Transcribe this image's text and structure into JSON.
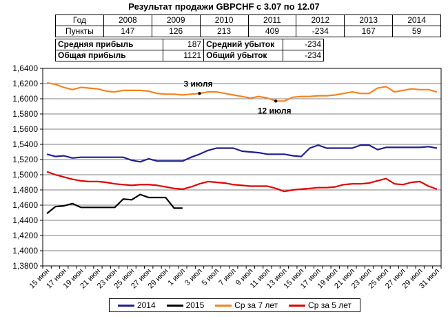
{
  "title": "Результат продажи GBPCHF с 3.07 по 12.07",
  "years_table": {
    "header_label": "Год",
    "values_label": "Пункты",
    "years": [
      "2008",
      "2009",
      "2010",
      "2011",
      "2012",
      "2013",
      "2014"
    ],
    "points": [
      "147",
      "126",
      "213",
      "409",
      "-234",
      "167",
      "59"
    ]
  },
  "summary": {
    "avg_profit_label": "Средняя прибыль",
    "avg_profit": "187",
    "avg_loss_label": "Средний убыток",
    "avg_loss": "-234",
    "total_profit_label": "Общая прибыль",
    "total_profit": "1121",
    "total_loss_label": "Общий убыток",
    "total_loss": "-234"
  },
  "chart_data": {
    "type": "line",
    "x": [
      "15 июн",
      "16 июн",
      "17 июн",
      "18 июн",
      "19 июн",
      "20 июн",
      "21 июн",
      "22 июн",
      "23 июн",
      "24 июн",
      "25 июн",
      "26 июн",
      "27 июн",
      "28 июн",
      "29 июн",
      "30 июн",
      "1 июл",
      "2 июл",
      "3 июл",
      "4 июл",
      "5 июл",
      "6 июл",
      "7 июл",
      "8 июл",
      "9 июл",
      "10 июл",
      "11 июл",
      "12 июл",
      "13 июл",
      "14 июл",
      "15 июл",
      "16 июл",
      "17 июл",
      "18 июл",
      "19 июл",
      "20 июл",
      "21 июл",
      "22 июл",
      "23 июл",
      "24 июл",
      "25 июл",
      "26 июл",
      "27 июл",
      "28 июл",
      "29 июл",
      "30 июл",
      "31 июл"
    ],
    "x_tick_labels": [
      "15 июн",
      "17 июн",
      "19 июн",
      "21 июн",
      "23 июн",
      "25 июн",
      "27 июн",
      "29 июн",
      "1 июл",
      "3 июл",
      "5 июл",
      "7 июл",
      "9 июл",
      "11 июл",
      "13 июл",
      "15 июл",
      "17 июл",
      "19 июл",
      "21 июл",
      "23 июл",
      "25 июл",
      "27 июл",
      "29 июл",
      "31 июл"
    ],
    "ylim": [
      1.38,
      1.64
    ],
    "y_ticks": [
      1.38,
      1.4,
      1.42,
      1.44,
      1.46,
      1.48,
      1.5,
      1.52,
      1.54,
      1.56,
      1.58,
      1.6,
      1.62,
      1.64
    ],
    "y_tick_labels": [
      "1,3800",
      "1,4000",
      "1,4200",
      "1,4400",
      "1,4600",
      "1,4800",
      "1,5000",
      "1,5200",
      "1,5400",
      "1,5600",
      "1,5800",
      "1,6000",
      "1,6200",
      "1,6400"
    ],
    "grid": true,
    "legend_position": "bottom",
    "series": [
      {
        "name": "2014",
        "color": "#1f1f8f",
        "values": [
          1.527,
          1.524,
          1.525,
          1.522,
          1.523,
          1.523,
          1.523,
          1.523,
          1.523,
          1.523,
          1.519,
          1.517,
          1.521,
          1.518,
          1.518,
          1.518,
          1.518,
          1.523,
          1.527,
          1.532,
          1.535,
          1.535,
          1.535,
          1.531,
          1.53,
          1.529,
          1.527,
          1.527,
          1.527,
          1.525,
          1.524,
          1.535,
          1.539,
          1.535,
          1.535,
          1.535,
          1.535,
          1.539,
          1.539,
          1.533,
          1.536,
          1.536,
          1.536,
          1.536,
          1.536,
          1.537,
          1.535
        ]
      },
      {
        "name": "2015",
        "color": "#000000",
        "values": [
          1.449,
          1.458,
          1.459,
          1.462,
          1.457,
          1.457,
          1.457,
          1.457,
          1.457,
          1.468,
          1.467,
          1.474,
          1.47,
          1.47,
          1.47,
          1.456,
          1.456,
          null,
          null,
          null,
          null,
          null,
          null,
          null,
          null,
          null,
          null,
          null,
          null,
          null,
          null,
          null,
          null,
          null,
          null,
          null,
          null,
          null,
          null,
          null,
          null,
          null,
          null,
          null,
          null,
          null,
          null
        ]
      },
      {
        "name": "Ср за 7 лет",
        "color": "#f5821f",
        "values": [
          1.621,
          1.619,
          1.615,
          1.612,
          1.615,
          1.614,
          1.613,
          1.61,
          1.609,
          1.611,
          1.611,
          1.611,
          1.61,
          1.607,
          1.606,
          1.606,
          1.605,
          1.606,
          1.607,
          1.609,
          1.609,
          1.607,
          1.605,
          1.603,
          1.601,
          1.603,
          1.601,
          1.597,
          1.597,
          1.602,
          1.603,
          1.603,
          1.604,
          1.604,
          1.605,
          1.607,
          1.609,
          1.607,
          1.607,
          1.614,
          1.616,
          1.609,
          1.611,
          1.613,
          1.612,
          1.612,
          1.609
        ]
      },
      {
        "name": "Ср за 5 лет",
        "color": "#e00000",
        "values": [
          1.504,
          1.5,
          1.497,
          1.494,
          1.492,
          1.491,
          1.491,
          1.49,
          1.488,
          1.487,
          1.486,
          1.487,
          1.487,
          1.486,
          1.484,
          1.482,
          1.481,
          1.484,
          1.488,
          1.491,
          1.49,
          1.489,
          1.487,
          1.486,
          1.485,
          1.485,
          1.485,
          1.482,
          1.478,
          1.48,
          1.481,
          1.482,
          1.483,
          1.483,
          1.484,
          1.487,
          1.488,
          1.488,
          1.489,
          1.492,
          1.495,
          1.488,
          1.487,
          1.49,
          1.491,
          1.485,
          1.481
        ]
      }
    ],
    "annotations": [
      {
        "text": "3 июля",
        "series": "Ср за 7 лет",
        "x": "3 июл"
      },
      {
        "text": "12 июля",
        "series": "Ср за 7 лет",
        "x": "12 июл"
      }
    ]
  }
}
